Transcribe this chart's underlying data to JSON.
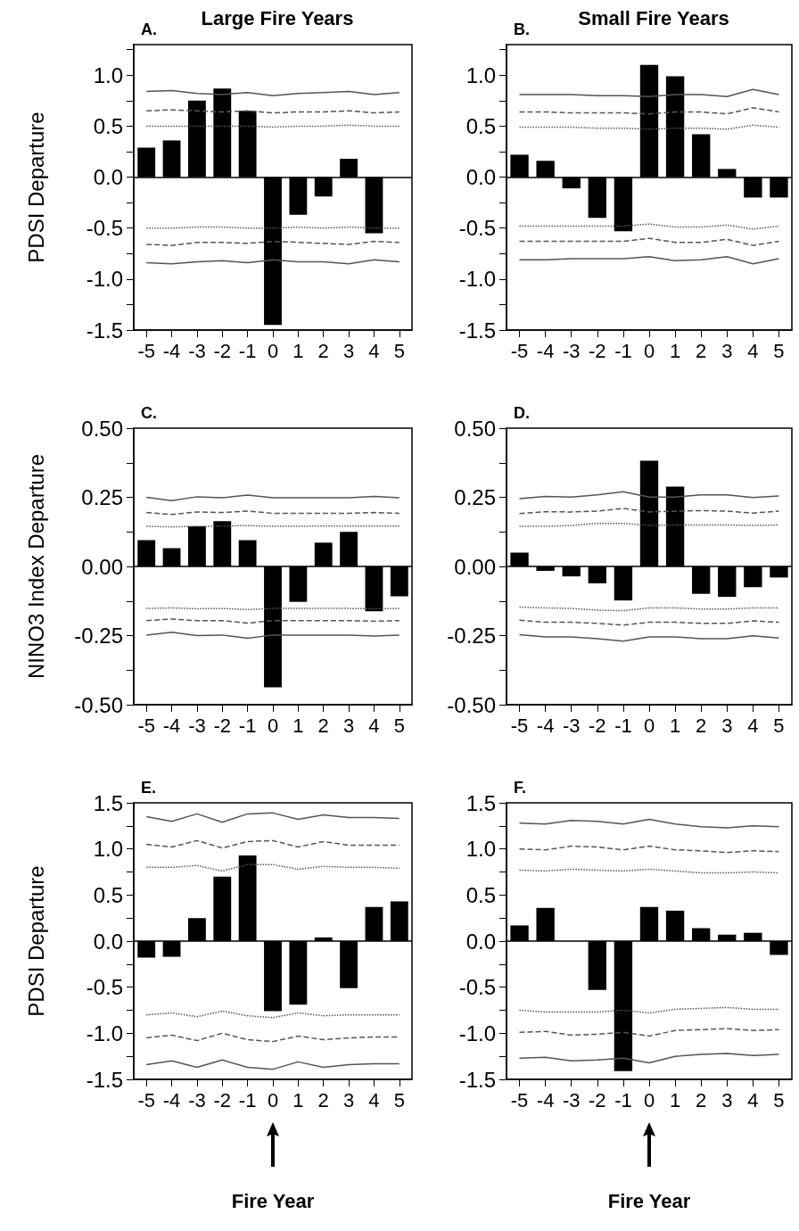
{
  "chart_data": [
    {
      "type": "bar",
      "title": "Large Fire Years",
      "ylabel": "PDSI Departure",
      "annotations": [
        "A."
      ],
      "marker": "none",
      "categories": [
        "-5",
        "-4",
        "-3",
        "-2",
        "-1",
        "0",
        "1",
        "2",
        "3",
        "4",
        "5"
      ],
      "ylim": [
        -1.5,
        1.3
      ],
      "yticks": [
        {
          "value": -1.5,
          "label": "-1.5"
        },
        {
          "value": -1.25,
          "label": null
        },
        {
          "value": -1,
          "label": "-1.0"
        },
        {
          "value": -0.75,
          "label": null
        },
        {
          "value": -0.5,
          "label": "-0.5"
        },
        {
          "value": -0.25,
          "label": null
        },
        {
          "value": 0,
          "label": "0.0"
        },
        {
          "value": 0.25,
          "label": null
        },
        {
          "value": 0.5,
          "label": "0.5"
        },
        {
          "value": 0.75,
          "label": null
        },
        {
          "value": 1,
          "label": "1.0"
        },
        {
          "value": 1.25,
          "label": null
        }
      ],
      "ref_lines": [
        {
          "axis": "y",
          "value": 0,
          "color": "#000000"
        }
      ],
      "series": [
        {
          "color": "#000000",
          "values": [
            0.29,
            0.36,
            0.75,
            0.87,
            0.65,
            -1.45,
            -0.37,
            -0.19,
            0.18,
            -0.55,
            null
          ]
        },
        {
          "type": "line",
          "color": "#555555",
          "line_style": "solid",
          "values": [
            0.84,
            0.85,
            0.82,
            0.81,
            0.83,
            0.8,
            0.82,
            0.83,
            0.84,
            0.81,
            0.83
          ]
        },
        {
          "type": "line",
          "color": "#555555",
          "line_style": "dashed",
          "values": [
            0.65,
            0.66,
            0.65,
            0.64,
            0.65,
            0.63,
            0.64,
            0.64,
            0.65,
            0.63,
            0.64
          ]
        },
        {
          "type": "line",
          "color": "#555555",
          "line_style": "dotted",
          "values": [
            0.5,
            0.5,
            0.5,
            0.5,
            0.5,
            0.49,
            0.5,
            0.5,
            0.51,
            0.5,
            0.5
          ]
        },
        {
          "type": "line",
          "color": "#555555",
          "line_style": "dotted",
          "values": [
            -0.5,
            -0.5,
            -0.49,
            -0.49,
            -0.5,
            -0.5,
            -0.49,
            -0.5,
            -0.49,
            -0.5,
            -0.5
          ]
        },
        {
          "type": "line",
          "color": "#555555",
          "line_style": "dashed",
          "values": [
            -0.66,
            -0.67,
            -0.64,
            -0.64,
            -0.65,
            -0.63,
            -0.64,
            -0.65,
            -0.66,
            -0.63,
            -0.64
          ]
        },
        {
          "type": "line",
          "color": "#555555",
          "line_style": "solid",
          "values": [
            -0.84,
            -0.85,
            -0.83,
            -0.82,
            -0.84,
            -0.81,
            -0.83,
            -0.83,
            -0.85,
            -0.81,
            -0.83
          ]
        }
      ]
    },
    {
      "type": "bar",
      "title": "Small Fire Years",
      "annotations": [
        "B."
      ],
      "marker": "none",
      "categories": [
        "-5",
        "-4",
        "-3",
        "-2",
        "-1",
        "0",
        "1",
        "2",
        "3",
        "4",
        "5"
      ],
      "ylim": [
        -1.5,
        1.3
      ],
      "yticks": [
        {
          "value": -1.5,
          "label": "-1.5"
        },
        {
          "value": -1.25,
          "label": null
        },
        {
          "value": -1,
          "label": "-1.0"
        },
        {
          "value": -0.75,
          "label": null
        },
        {
          "value": -0.5,
          "label": "-0.5"
        },
        {
          "value": -0.25,
          "label": null
        },
        {
          "value": 0,
          "label": "0.0"
        },
        {
          "value": 0.25,
          "label": null
        },
        {
          "value": 0.5,
          "label": "0.5"
        },
        {
          "value": 0.75,
          "label": null
        },
        {
          "value": 1,
          "label": "1.0"
        },
        {
          "value": 1.25,
          "label": null
        }
      ],
      "ref_lines": [
        {
          "axis": "y",
          "value": 0,
          "color": "#000000"
        }
      ],
      "series": [
        {
          "color": "#000000",
          "values": [
            0.22,
            0.16,
            -0.11,
            -0.4,
            -0.53,
            1.1,
            0.99,
            0.42,
            0.08,
            -0.2,
            -0.2
          ]
        },
        {
          "type": "line",
          "color": "#555555",
          "line_style": "solid",
          "values": [
            0.81,
            0.81,
            0.81,
            0.8,
            0.8,
            0.79,
            0.81,
            0.81,
            0.79,
            0.86,
            0.81
          ]
        },
        {
          "type": "line",
          "color": "#555555",
          "line_style": "dashed",
          "values": [
            0.64,
            0.64,
            0.63,
            0.63,
            0.63,
            0.62,
            0.64,
            0.64,
            0.62,
            0.68,
            0.64
          ]
        },
        {
          "type": "line",
          "color": "#555555",
          "line_style": "dotted",
          "values": [
            0.49,
            0.49,
            0.49,
            0.48,
            0.48,
            0.47,
            0.48,
            0.48,
            0.47,
            0.51,
            0.49
          ]
        },
        {
          "type": "line",
          "color": "#555555",
          "line_style": "dotted",
          "values": [
            -0.48,
            -0.48,
            -0.48,
            -0.48,
            -0.48,
            -0.46,
            -0.49,
            -0.49,
            -0.47,
            -0.51,
            -0.48
          ]
        },
        {
          "type": "line",
          "color": "#555555",
          "line_style": "dashed",
          "values": [
            -0.63,
            -0.63,
            -0.63,
            -0.63,
            -0.63,
            -0.6,
            -0.64,
            -0.64,
            -0.61,
            -0.67,
            -0.63
          ]
        },
        {
          "type": "line",
          "color": "#555555",
          "line_style": "solid",
          "values": [
            -0.81,
            -0.81,
            -0.8,
            -0.8,
            -0.8,
            -0.78,
            -0.82,
            -0.81,
            -0.78,
            -0.85,
            -0.8
          ]
        }
      ]
    },
    {
      "type": "bar",
      "ylabel": "NINO3 Index Departure",
      "annotations": [
        "C."
      ],
      "marker": "none",
      "categories": [
        "-5",
        "-4",
        "-3",
        "-2",
        "-1",
        "0",
        "1",
        "2",
        "3",
        "4",
        "5"
      ],
      "ylim": [
        -0.5,
        0.5
      ],
      "yticks": [
        {
          "value": -0.5,
          "label": "-0.50"
        },
        {
          "value": -0.375,
          "label": null
        },
        {
          "value": -0.25,
          "label": "-0.25"
        },
        {
          "value": -0.125,
          "label": null
        },
        {
          "value": 0,
          "label": "0.00"
        },
        {
          "value": 0.125,
          "label": null
        },
        {
          "value": 0.25,
          "label": "0.25"
        },
        {
          "value": 0.375,
          "label": null
        },
        {
          "value": 0.5,
          "label": "0.50"
        }
      ],
      "ref_lines": [
        {
          "axis": "y",
          "value": 0,
          "color": "#000000"
        }
      ],
      "series": [
        {
          "color": "#000000",
          "values": [
            0.095,
            0.066,
            0.145,
            0.164,
            0.095,
            -0.437,
            -0.128,
            0.086,
            0.125,
            -0.162,
            -0.108
          ]
        },
        {
          "type": "line",
          "color": "#555555",
          "line_style": "solid",
          "values": [
            0.25,
            0.238,
            0.252,
            0.248,
            0.258,
            0.248,
            0.248,
            0.248,
            0.248,
            0.253,
            0.248
          ]
        },
        {
          "type": "line",
          "color": "#555555",
          "line_style": "dashed",
          "values": [
            0.195,
            0.188,
            0.197,
            0.195,
            0.2,
            0.192,
            0.192,
            0.192,
            0.192,
            0.195,
            0.192
          ]
        },
        {
          "type": "line",
          "color": "#555555",
          "line_style": "dotted",
          "values": [
            0.145,
            0.143,
            0.145,
            0.146,
            0.148,
            0.145,
            0.145,
            0.146,
            0.146,
            0.146,
            0.146
          ]
        },
        {
          "type": "line",
          "color": "#555555",
          "line_style": "dotted",
          "values": [
            -0.152,
            -0.15,
            -0.153,
            -0.152,
            -0.156,
            -0.152,
            -0.152,
            -0.152,
            -0.152,
            -0.153,
            -0.152
          ]
        },
        {
          "type": "line",
          "color": "#555555",
          "line_style": "dashed",
          "values": [
            -0.196,
            -0.19,
            -0.196,
            -0.196,
            -0.205,
            -0.196,
            -0.196,
            -0.196,
            -0.196,
            -0.198,
            -0.196
          ]
        },
        {
          "type": "line",
          "color": "#555555",
          "line_style": "solid",
          "values": [
            -0.248,
            -0.238,
            -0.25,
            -0.248,
            -0.26,
            -0.248,
            -0.248,
            -0.248,
            -0.248,
            -0.252,
            -0.248
          ]
        }
      ]
    },
    {
      "type": "bar",
      "annotations": [
        "D."
      ],
      "marker": "none",
      "categories": [
        "-5",
        "-4",
        "-3",
        "-2",
        "-1",
        "0",
        "1",
        "2",
        "3",
        "4",
        "5"
      ],
      "ylim": [
        -0.5,
        0.5
      ],
      "yticks": [
        {
          "value": -0.5,
          "label": "-0.50"
        },
        {
          "value": -0.375,
          "label": null
        },
        {
          "value": -0.25,
          "label": "-0.25"
        },
        {
          "value": -0.125,
          "label": null
        },
        {
          "value": 0,
          "label": "0.00"
        },
        {
          "value": 0.125,
          "label": null
        },
        {
          "value": 0.25,
          "label": "0.25"
        },
        {
          "value": 0.375,
          "label": null
        },
        {
          "value": 0.5,
          "label": "0.50"
        }
      ],
      "ref_lines": [
        {
          "axis": "y",
          "value": 0,
          "color": "#000000"
        }
      ],
      "series": [
        {
          "color": "#000000",
          "values": [
            0.05,
            -0.016,
            -0.036,
            -0.061,
            -0.123,
            0.382,
            0.289,
            -0.099,
            -0.11,
            -0.075,
            -0.04
          ]
        },
        {
          "type": "line",
          "color": "#555555",
          "line_style": "solid",
          "values": [
            0.245,
            0.253,
            0.251,
            0.259,
            0.27,
            0.251,
            0.251,
            0.259,
            0.259,
            0.249,
            0.255
          ]
        },
        {
          "type": "line",
          "color": "#555555",
          "line_style": "dashed",
          "values": [
            0.191,
            0.198,
            0.197,
            0.2,
            0.21,
            0.197,
            0.2,
            0.202,
            0.2,
            0.193,
            0.2
          ]
        },
        {
          "type": "line",
          "color": "#555555",
          "line_style": "dotted",
          "values": [
            0.145,
            0.145,
            0.148,
            0.156,
            0.156,
            0.148,
            0.15,
            0.15,
            0.15,
            0.148,
            0.15
          ]
        },
        {
          "type": "line",
          "color": "#555555",
          "line_style": "dotted",
          "values": [
            -0.147,
            -0.15,
            -0.152,
            -0.158,
            -0.16,
            -0.15,
            -0.15,
            -0.154,
            -0.154,
            -0.15,
            -0.15
          ]
        },
        {
          "type": "line",
          "color": "#555555",
          "line_style": "dashed",
          "values": [
            -0.194,
            -0.202,
            -0.202,
            -0.206,
            -0.212,
            -0.202,
            -0.202,
            -0.206,
            -0.206,
            -0.197,
            -0.202
          ]
        },
        {
          "type": "line",
          "color": "#555555",
          "line_style": "solid",
          "values": [
            -0.247,
            -0.255,
            -0.255,
            -0.261,
            -0.27,
            -0.255,
            -0.255,
            -0.261,
            -0.261,
            -0.251,
            -0.259
          ]
        }
      ]
    },
    {
      "type": "bar",
      "ylabel": "PDSI Departure",
      "xlabel": "Fire Year",
      "annotations": [
        "E."
      ],
      "marker": "none",
      "categories": [
        "-5",
        "-4",
        "-3",
        "-2",
        "-1",
        "0",
        "1",
        "2",
        "3",
        "4",
        "5"
      ],
      "ylim": [
        -1.5,
        1.5
      ],
      "yticks": [
        {
          "value": -1.5,
          "label": "-1.5"
        },
        {
          "value": -1.25,
          "label": null
        },
        {
          "value": -1,
          "label": "-1.0"
        },
        {
          "value": -0.75,
          "label": null
        },
        {
          "value": -0.5,
          "label": "-0.5"
        },
        {
          "value": -0.25,
          "label": null
        },
        {
          "value": 0,
          "label": "0.0"
        },
        {
          "value": 0.25,
          "label": null
        },
        {
          "value": 0.5,
          "label": "0.5"
        },
        {
          "value": 0.75,
          "label": null
        },
        {
          "value": 1,
          "label": "1.0"
        },
        {
          "value": 1.25,
          "label": null
        },
        {
          "value": 1.5,
          "label": "1.5"
        }
      ],
      "ref_lines": [
        {
          "axis": "y",
          "value": 0,
          "color": "#000000"
        }
      ],
      "series": [
        {
          "color": "#000000",
          "values": [
            -0.18,
            -0.17,
            0.25,
            0.7,
            0.93,
            -0.76,
            -0.69,
            0.04,
            -0.51,
            0.37,
            0.43
          ]
        },
        {
          "type": "line",
          "color": "#555555",
          "line_style": "solid",
          "values": [
            1.35,
            1.3,
            1.38,
            1.29,
            1.38,
            1.39,
            1.32,
            1.37,
            1.34,
            1.34,
            1.33
          ]
        },
        {
          "type": "line",
          "color": "#555555",
          "line_style": "dashed",
          "values": [
            1.05,
            1.02,
            1.09,
            1.01,
            1.08,
            1.09,
            1.02,
            1.08,
            1.04,
            1.04,
            1.04
          ]
        },
        {
          "type": "line",
          "color": "#555555",
          "line_style": "dotted",
          "values": [
            0.8,
            0.8,
            0.82,
            0.76,
            0.83,
            0.83,
            0.78,
            0.81,
            0.8,
            0.8,
            0.79
          ]
        },
        {
          "type": "line",
          "color": "#555555",
          "line_style": "dotted",
          "values": [
            -0.8,
            -0.78,
            -0.82,
            -0.76,
            -0.81,
            -0.83,
            -0.78,
            -0.81,
            -0.8,
            -0.8,
            -0.8
          ]
        },
        {
          "type": "line",
          "color": "#555555",
          "line_style": "dashed",
          "values": [
            -1.05,
            -1.02,
            -1.08,
            -1,
            -1.07,
            -1.09,
            -1.03,
            -1.07,
            -1.05,
            -1.04,
            -1.04
          ]
        },
        {
          "type": "line",
          "color": "#555555",
          "line_style": "solid",
          "values": [
            -1.34,
            -1.3,
            -1.37,
            -1.29,
            -1.37,
            -1.39,
            -1.31,
            -1.37,
            -1.34,
            -1.33,
            -1.33
          ]
        }
      ]
    },
    {
      "type": "bar",
      "xlabel": "Fire Year",
      "annotations": [
        "F."
      ],
      "marker": "none",
      "categories": [
        "-5",
        "-4",
        "-3",
        "-2",
        "-1",
        "0",
        "1",
        "2",
        "3",
        "4",
        "5"
      ],
      "ylim": [
        -1.5,
        1.5
      ],
      "yticks": [
        {
          "value": -1.5,
          "label": "-1.5"
        },
        {
          "value": -1.25,
          "label": null
        },
        {
          "value": -1,
          "label": "-1.0"
        },
        {
          "value": -0.75,
          "label": null
        },
        {
          "value": -0.5,
          "label": "-0.5"
        },
        {
          "value": -0.25,
          "label": null
        },
        {
          "value": 0,
          "label": "0.0"
        },
        {
          "value": 0.25,
          "label": null
        },
        {
          "value": 0.5,
          "label": "0.5"
        },
        {
          "value": 0.75,
          "label": null
        },
        {
          "value": 1,
          "label": "1.0"
        },
        {
          "value": 1.25,
          "label": null
        },
        {
          "value": 1.5,
          "label": "1.5"
        }
      ],
      "ref_lines": [
        {
          "axis": "y",
          "value": 0,
          "color": "#000000"
        }
      ],
      "series": [
        {
          "color": "#000000",
          "values": [
            0.17,
            0.36,
            null,
            -0.53,
            -1.41,
            0.37,
            0.33,
            0.14,
            0.07,
            0.09,
            -0.15
          ]
        },
        {
          "type": "line",
          "color": "#555555",
          "line_style": "solid",
          "values": [
            1.28,
            1.27,
            1.31,
            1.3,
            1.27,
            1.32,
            1.27,
            1.24,
            1.23,
            1.25,
            1.24
          ]
        },
        {
          "type": "line",
          "color": "#555555",
          "line_style": "dashed",
          "values": [
            1,
            0.99,
            1.03,
            1.02,
            0.99,
            1.03,
            0.99,
            0.98,
            0.96,
            0.98,
            0.97
          ]
        },
        {
          "type": "line",
          "color": "#555555",
          "line_style": "dotted",
          "values": [
            0.77,
            0.76,
            0.78,
            0.77,
            0.76,
            0.78,
            0.76,
            0.74,
            0.74,
            0.75,
            0.74
          ]
        },
        {
          "type": "line",
          "color": "#555555",
          "line_style": "dotted",
          "values": [
            -0.75,
            -0.77,
            -0.77,
            -0.77,
            -0.75,
            -0.78,
            -0.74,
            -0.73,
            -0.72,
            -0.74,
            -0.74
          ]
        },
        {
          "type": "line",
          "color": "#555555",
          "line_style": "dashed",
          "values": [
            -0.99,
            -0.98,
            -1.02,
            -1.01,
            -0.99,
            -1.03,
            -0.97,
            -0.96,
            -0.95,
            -0.97,
            -0.96
          ]
        },
        {
          "type": "line",
          "color": "#555555",
          "line_style": "solid",
          "values": [
            -1.27,
            -1.26,
            -1.3,
            -1.29,
            -1.27,
            -1.32,
            -1.25,
            -1.23,
            -1.22,
            -1.24,
            -1.23
          ]
        }
      ]
    }
  ]
}
